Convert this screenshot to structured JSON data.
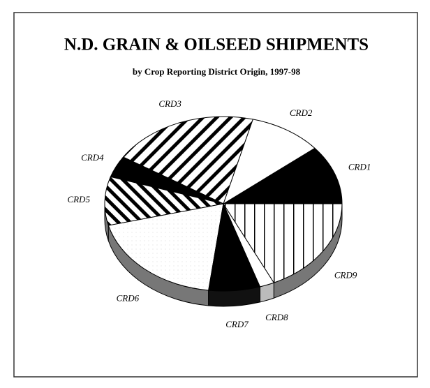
{
  "chart_data": {
    "type": "pie",
    "title": "N.D. GRAIN & OILSEED SHIPMENTS",
    "subtitle": "by Crop Reporting District Origin, 1997-98",
    "categories": [
      "CRD1",
      "CRD2",
      "CRD3",
      "CRD4",
      "CRD5",
      "CRD6",
      "CRD7",
      "CRD8",
      "CRD9"
    ],
    "values": [
      11,
      10,
      20,
      4,
      9,
      19,
      7,
      2,
      18
    ],
    "colors": [
      "#000000",
      "#ffffff",
      "pattern-diag",
      "#000000",
      "pattern-diag-dense",
      "pattern-dots",
      "#000000",
      "#ffffff",
      "pattern-vert"
    ]
  }
}
